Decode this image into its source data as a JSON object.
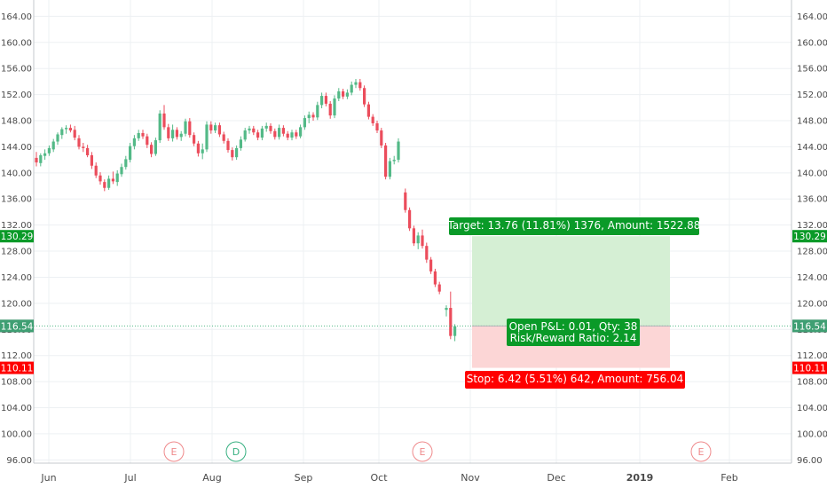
{
  "chart_data": {
    "type": "candlestick",
    "y_ticks": [
      "164.00",
      "160.00",
      "156.00",
      "152.00",
      "148.00",
      "144.00",
      "140.00",
      "136.00",
      "132.00",
      "128.00",
      "124.00",
      "120.00",
      "116.00",
      "112.00",
      "108.00",
      "104.00",
      "100.00",
      "96.00"
    ],
    "ylim": [
      95.5,
      166.5
    ],
    "x_labels": [
      {
        "label": "Jun",
        "bold": false
      },
      {
        "label": "Jul",
        "bold": false
      },
      {
        "label": "Aug",
        "bold": false
      },
      {
        "label": "Sep",
        "bold": false
      },
      {
        "label": "Oct",
        "bold": false
      },
      {
        "label": "Nov",
        "bold": false
      },
      {
        "label": "Dec",
        "bold": false
      },
      {
        "label": "2019",
        "bold": true
      },
      {
        "label": "Feb",
        "bold": false
      }
    ],
    "candles": [
      {
        "o": 142.3,
        "h": 143.2,
        "l": 141.0,
        "c": 141.6
      },
      {
        "o": 141.5,
        "h": 143.0,
        "l": 141.0,
        "c": 142.7
      },
      {
        "o": 142.6,
        "h": 143.6,
        "l": 142.0,
        "c": 143.0
      },
      {
        "o": 143.0,
        "h": 144.2,
        "l": 142.6,
        "c": 143.8
      },
      {
        "o": 143.6,
        "h": 145.2,
        "l": 143.2,
        "c": 144.8
      },
      {
        "o": 144.8,
        "h": 146.2,
        "l": 144.3,
        "c": 145.9
      },
      {
        "o": 145.8,
        "h": 147.0,
        "l": 145.2,
        "c": 146.7
      },
      {
        "o": 146.7,
        "h": 147.3,
        "l": 146.0,
        "c": 146.9
      },
      {
        "o": 146.9,
        "h": 147.4,
        "l": 146.2,
        "c": 146.5
      },
      {
        "o": 146.6,
        "h": 147.2,
        "l": 145.0,
        "c": 145.4
      },
      {
        "o": 145.3,
        "h": 145.8,
        "l": 143.6,
        "c": 144.0
      },
      {
        "o": 144.0,
        "h": 144.6,
        "l": 143.2,
        "c": 143.8
      },
      {
        "o": 143.8,
        "h": 144.3,
        "l": 142.4,
        "c": 142.7
      },
      {
        "o": 142.7,
        "h": 143.2,
        "l": 140.6,
        "c": 141.1
      },
      {
        "o": 141.1,
        "h": 141.6,
        "l": 139.2,
        "c": 139.6
      },
      {
        "o": 139.6,
        "h": 140.1,
        "l": 138.2,
        "c": 138.7
      },
      {
        "o": 138.6,
        "h": 139.0,
        "l": 137.2,
        "c": 137.7
      },
      {
        "o": 137.7,
        "h": 139.6,
        "l": 137.4,
        "c": 139.1
      },
      {
        "o": 139.1,
        "h": 140.2,
        "l": 138.3,
        "c": 138.7
      },
      {
        "o": 138.6,
        "h": 140.4,
        "l": 138.0,
        "c": 139.9
      },
      {
        "o": 139.8,
        "h": 141.4,
        "l": 139.4,
        "c": 140.9
      },
      {
        "o": 140.9,
        "h": 142.6,
        "l": 140.5,
        "c": 142.1
      },
      {
        "o": 142.0,
        "h": 144.6,
        "l": 141.6,
        "c": 144.1
      },
      {
        "o": 144.1,
        "h": 145.8,
        "l": 143.6,
        "c": 145.3
      },
      {
        "o": 145.3,
        "h": 146.6,
        "l": 144.9,
        "c": 146.1
      },
      {
        "o": 146.1,
        "h": 146.6,
        "l": 145.2,
        "c": 145.6
      },
      {
        "o": 145.6,
        "h": 146.0,
        "l": 143.8,
        "c": 144.3
      },
      {
        "o": 144.3,
        "h": 144.7,
        "l": 142.4,
        "c": 142.9
      },
      {
        "o": 142.9,
        "h": 145.4,
        "l": 142.6,
        "c": 145.0
      },
      {
        "o": 145.0,
        "h": 149.6,
        "l": 144.6,
        "c": 149.1
      },
      {
        "o": 149.1,
        "h": 150.4,
        "l": 146.6,
        "c": 147.0
      },
      {
        "o": 147.0,
        "h": 147.5,
        "l": 144.9,
        "c": 145.3
      },
      {
        "o": 145.3,
        "h": 147.4,
        "l": 144.8,
        "c": 146.6
      },
      {
        "o": 146.6,
        "h": 147.0,
        "l": 145.1,
        "c": 145.5
      },
      {
        "o": 145.5,
        "h": 146.4,
        "l": 144.9,
        "c": 146.0
      },
      {
        "o": 146.0,
        "h": 148.3,
        "l": 145.6,
        "c": 147.9
      },
      {
        "o": 147.9,
        "h": 148.4,
        "l": 145.4,
        "c": 145.8
      },
      {
        "o": 145.8,
        "h": 146.2,
        "l": 144.1,
        "c": 144.5
      },
      {
        "o": 144.5,
        "h": 144.9,
        "l": 142.5,
        "c": 143.0
      },
      {
        "o": 143.0,
        "h": 144.5,
        "l": 142.1,
        "c": 143.6
      },
      {
        "o": 143.6,
        "h": 147.9,
        "l": 143.2,
        "c": 147.4
      },
      {
        "o": 147.4,
        "h": 147.9,
        "l": 146.0,
        "c": 146.5
      },
      {
        "o": 146.5,
        "h": 147.7,
        "l": 146.1,
        "c": 147.3
      },
      {
        "o": 147.3,
        "h": 147.7,
        "l": 145.5,
        "c": 145.9
      },
      {
        "o": 145.9,
        "h": 146.3,
        "l": 144.5,
        "c": 144.9
      },
      {
        "o": 144.9,
        "h": 145.3,
        "l": 143.1,
        "c": 143.5
      },
      {
        "o": 143.5,
        "h": 143.9,
        "l": 141.9,
        "c": 142.4
      },
      {
        "o": 142.4,
        "h": 144.2,
        "l": 142.0,
        "c": 143.8
      },
      {
        "o": 143.8,
        "h": 145.6,
        "l": 143.4,
        "c": 145.1
      },
      {
        "o": 145.1,
        "h": 146.9,
        "l": 144.8,
        "c": 146.5
      },
      {
        "o": 146.5,
        "h": 147.2,
        "l": 146.0,
        "c": 146.8
      },
      {
        "o": 146.8,
        "h": 147.2,
        "l": 145.8,
        "c": 146.2
      },
      {
        "o": 146.2,
        "h": 146.6,
        "l": 145.0,
        "c": 145.4
      },
      {
        "o": 145.4,
        "h": 147.2,
        "l": 145.0,
        "c": 146.8
      },
      {
        "o": 146.8,
        "h": 147.7,
        "l": 146.3,
        "c": 147.2
      },
      {
        "o": 147.2,
        "h": 147.6,
        "l": 146.0,
        "c": 146.4
      },
      {
        "o": 146.4,
        "h": 146.8,
        "l": 145.1,
        "c": 145.5
      },
      {
        "o": 145.5,
        "h": 147.4,
        "l": 145.1,
        "c": 146.9
      },
      {
        "o": 146.9,
        "h": 147.3,
        "l": 145.6,
        "c": 146.0
      },
      {
        "o": 146.0,
        "h": 146.4,
        "l": 145.0,
        "c": 145.4
      },
      {
        "o": 145.4,
        "h": 146.6,
        "l": 145.0,
        "c": 146.2
      },
      {
        "o": 146.2,
        "h": 146.6,
        "l": 145.2,
        "c": 145.6
      },
      {
        "o": 145.6,
        "h": 147.4,
        "l": 145.3,
        "c": 147.0
      },
      {
        "o": 147.0,
        "h": 148.8,
        "l": 146.6,
        "c": 148.4
      },
      {
        "o": 148.4,
        "h": 149.4,
        "l": 147.6,
        "c": 148.9
      },
      {
        "o": 148.9,
        "h": 149.3,
        "l": 148.0,
        "c": 148.5
      },
      {
        "o": 148.5,
        "h": 150.9,
        "l": 148.1,
        "c": 150.4
      },
      {
        "o": 150.4,
        "h": 152.3,
        "l": 149.9,
        "c": 151.8
      },
      {
        "o": 151.8,
        "h": 152.3,
        "l": 150.2,
        "c": 150.6
      },
      {
        "o": 150.6,
        "h": 151.0,
        "l": 148.3,
        "c": 148.8
      },
      {
        "o": 148.8,
        "h": 151.9,
        "l": 148.4,
        "c": 151.4
      },
      {
        "o": 151.4,
        "h": 153.0,
        "l": 151.0,
        "c": 152.5
      },
      {
        "o": 152.5,
        "h": 152.9,
        "l": 151.3,
        "c": 151.7
      },
      {
        "o": 151.7,
        "h": 152.8,
        "l": 151.3,
        "c": 152.3
      },
      {
        "o": 152.3,
        "h": 154.0,
        "l": 151.9,
        "c": 153.5
      },
      {
        "o": 153.5,
        "h": 154.4,
        "l": 153.0,
        "c": 153.9
      },
      {
        "o": 153.9,
        "h": 154.4,
        "l": 152.6,
        "c": 153.0
      },
      {
        "o": 153.0,
        "h": 153.4,
        "l": 150.1,
        "c": 150.5
      },
      {
        "o": 150.5,
        "h": 150.9,
        "l": 148.2,
        "c": 148.6
      },
      {
        "o": 148.6,
        "h": 149.0,
        "l": 147.2,
        "c": 147.6
      },
      {
        "o": 147.6,
        "h": 148.0,
        "l": 146.1,
        "c": 146.5
      },
      {
        "o": 146.5,
        "h": 146.9,
        "l": 143.8,
        "c": 144.2
      },
      {
        "o": 144.2,
        "h": 144.6,
        "l": 139.0,
        "c": 139.4
      },
      {
        "o": 139.4,
        "h": 142.3,
        "l": 139.0,
        "c": 141.8
      },
      {
        "o": 141.8,
        "h": 142.6,
        "l": 141.3,
        "c": 142.0
      },
      {
        "o": 142.0,
        "h": 145.3,
        "l": 141.6,
        "c": 144.8
      },
      {
        "o": 137.0,
        "h": 137.6,
        "l": 133.9,
        "c": 134.3
      },
      {
        "o": 134.3,
        "h": 134.7,
        "l": 131.1,
        "c": 131.5
      },
      {
        "o": 131.5,
        "h": 131.9,
        "l": 128.8,
        "c": 129.2
      },
      {
        "o": 129.2,
        "h": 130.9,
        "l": 128.3,
        "c": 130.4
      },
      {
        "o": 130.4,
        "h": 131.3,
        "l": 128.4,
        "c": 128.8
      },
      {
        "o": 128.8,
        "h": 129.3,
        "l": 126.2,
        "c": 126.7
      },
      {
        "o": 126.7,
        "h": 127.1,
        "l": 124.5,
        "c": 124.9
      },
      {
        "o": 124.9,
        "h": 125.3,
        "l": 122.5,
        "c": 122.9
      },
      {
        "o": 122.9,
        "h": 123.3,
        "l": 121.4,
        "c": 121.8
      },
      {
        "o": 119.0,
        "h": 119.7,
        "l": 118.0,
        "c": 119.3
      },
      {
        "o": 119.3,
        "h": 121.8,
        "l": 114.5,
        "c": 115.0
      },
      {
        "o": 115.0,
        "h": 116.8,
        "l": 114.2,
        "c": 116.5
      }
    ],
    "position": {
      "entry": 116.53,
      "target": 130.29,
      "stop": 110.11,
      "target_label": "Target: 13.76 (11.81%) 1376, Amount: 1522.88",
      "stop_label": "Stop: 6.42 (5.51%) 642, Amount: 756.04",
      "pnl_label": "Open P&L: 0.01, Qty: 38",
      "rr_label": "Risk/Reward Ratio: 2.14"
    },
    "price_tags": [
      {
        "value": 130.29,
        "text": "130.29",
        "color": "#0a9a28"
      },
      {
        "value": 116.53,
        "text": "116.53",
        "color": "#4a4f56"
      },
      {
        "value": 116.54,
        "text": "116.54",
        "color": "#3f9f73"
      },
      {
        "value": 110.11,
        "text": "110.11",
        "color": "#ff0000"
      }
    ],
    "events": [
      {
        "letter": "E",
        "color": "#ef8a8c"
      },
      {
        "letter": "D",
        "color": "#37b081"
      },
      {
        "letter": "E",
        "color": "#ef8a8c"
      },
      {
        "letter": "E",
        "color": "#ef8a8c"
      }
    ],
    "colors": {
      "up": "#53b987",
      "down": "#eb4d5c",
      "target_fill": "#d5efd4",
      "stop_fill": "#fcd6d6",
      "target_box": "#0a9a28",
      "stop_box": "#ff0000",
      "pnl_box": "#0a9a28"
    }
  }
}
